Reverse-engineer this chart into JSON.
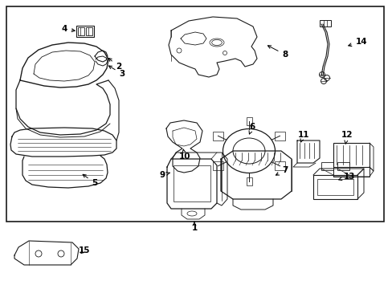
{
  "background_color": "#ffffff",
  "line_color": "#1a1a1a",
  "text_color": "#000000",
  "font_size": 7.5,
  "fig_width": 4.89,
  "fig_height": 3.6,
  "dpi": 100
}
